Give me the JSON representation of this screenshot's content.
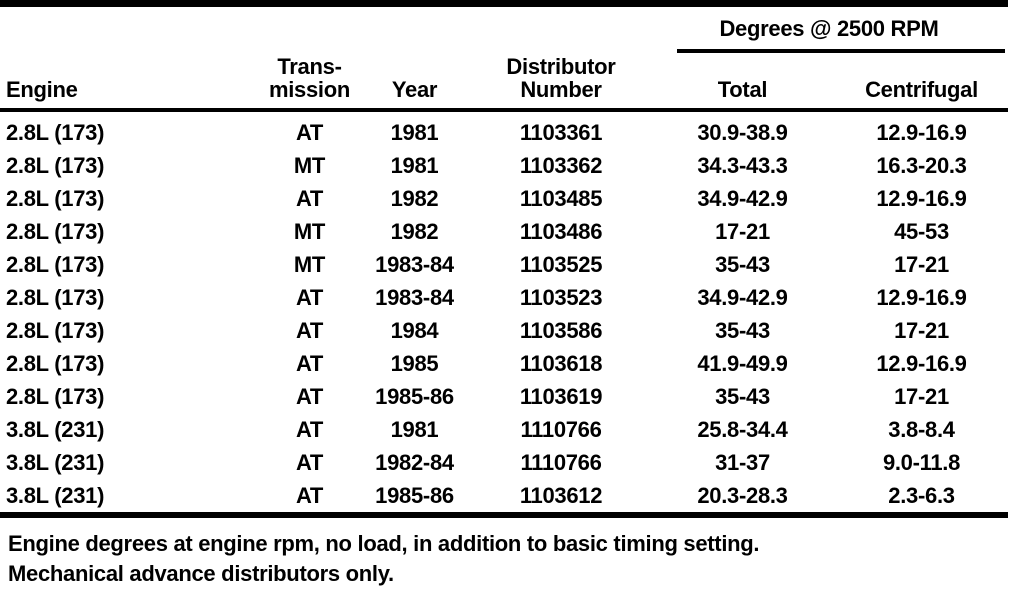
{
  "colors": {
    "ink": "#000000",
    "paper": "#ffffff"
  },
  "table": {
    "group_header": "Degrees @ 2500 RPM",
    "columns": [
      {
        "id": "engine",
        "lines": [
          "Engine"
        ]
      },
      {
        "id": "transmission",
        "lines": [
          "Trans-",
          "mission"
        ]
      },
      {
        "id": "year",
        "lines": [
          "Year"
        ]
      },
      {
        "id": "distributor-number",
        "lines": [
          "Distributor",
          "Number"
        ]
      },
      {
        "id": "total",
        "lines": [
          "Total"
        ]
      },
      {
        "id": "centrifugal",
        "lines": [
          "Centrifugal"
        ]
      }
    ],
    "rows": [
      [
        "2.8L (173)",
        "AT",
        "1981",
        "1103361",
        "30.9-38.9",
        "12.9-16.9"
      ],
      [
        "2.8L (173)",
        "MT",
        "1981",
        "1103362",
        "34.3-43.3",
        "16.3-20.3"
      ],
      [
        "2.8L (173)",
        "AT",
        "1982",
        "1103485",
        "34.9-42.9",
        "12.9-16.9"
      ],
      [
        "2.8L (173)",
        "MT",
        "1982",
        "1103486",
        "17-21",
        "45-53"
      ],
      [
        "2.8L (173)",
        "MT",
        "1983-84",
        "1103525",
        "35-43",
        "17-21"
      ],
      [
        "2.8L (173)",
        "AT",
        "1983-84",
        "1103523",
        "34.9-42.9",
        "12.9-16.9"
      ],
      [
        "2.8L (173)",
        "AT",
        "1984",
        "1103586",
        "35-43",
        "17-21"
      ],
      [
        "2.8L (173)",
        "AT",
        "1985",
        "1103618",
        "41.9-49.9",
        "12.9-16.9"
      ],
      [
        "2.8L (173)",
        "AT",
        "1985-86",
        "1103619",
        "35-43",
        "17-21"
      ],
      [
        "3.8L (231)",
        "AT",
        "1981",
        "1110766",
        "25.8-34.4",
        "3.8-8.4"
      ],
      [
        "3.8L (231)",
        "AT",
        "1982-84",
        "1110766",
        "31-37",
        "9.0-11.8"
      ],
      [
        "3.8L (231)",
        "AT",
        "1985-86",
        "1103612",
        "20.3-28.3",
        "2.3-6.3"
      ]
    ]
  },
  "footnotes": [
    "Engine degrees at engine rpm, no load, in addition to basic timing setting.",
    "Mechanical advance distributors only."
  ]
}
